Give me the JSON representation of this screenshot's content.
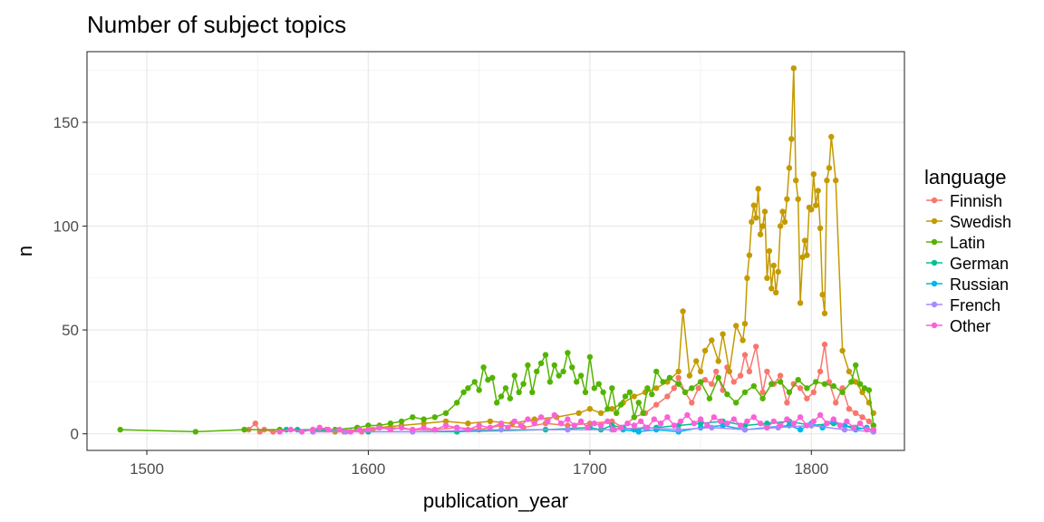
{
  "chart_data": {
    "type": "line",
    "title": "Number of subject topics",
    "xlabel": "publication_year",
    "ylabel": "n",
    "xlim": [
      1473,
      1842
    ],
    "ylim": [
      -8,
      184
    ],
    "x_ticks": [
      1500,
      1600,
      1700,
      1800
    ],
    "y_ticks": [
      0,
      50,
      100,
      150
    ],
    "grid": true,
    "legend": {
      "title": "language",
      "position": "right"
    },
    "series": [
      {
        "name": "Finnish",
        "color": "#F8766D",
        "x": [
          1544,
          1546,
          1549,
          1551,
          1553,
          1557,
          1575,
          1581,
          1589,
          1597,
          1602,
          1610,
          1620,
          1630,
          1640,
          1650,
          1660,
          1670,
          1680,
          1690,
          1700,
          1710,
          1715,
          1720,
          1725,
          1730,
          1735,
          1738,
          1740,
          1743,
          1746,
          1749,
          1752,
          1755,
          1757,
          1760,
          1762,
          1765,
          1768,
          1770,
          1772,
          1775,
          1778,
          1780,
          1783,
          1786,
          1789,
          1792,
          1795,
          1798,
          1801,
          1804,
          1806,
          1808,
          1811,
          1814,
          1817,
          1820,
          1823,
          1826,
          1828
        ],
        "y": [
          2,
          2,
          5,
          1,
          2,
          1,
          2,
          2,
          1,
          1,
          2,
          3,
          2,
          2,
          3,
          2,
          4,
          3,
          5,
          4,
          5,
          6,
          3,
          8,
          10,
          14,
          18,
          22,
          27,
          20,
          15,
          22,
          26,
          24,
          30,
          21,
          32,
          25,
          28,
          38,
          30,
          42,
          20,
          30,
          24,
          28,
          15,
          24,
          22,
          17,
          20,
          30,
          43,
          25,
          15,
          22,
          12,
          10,
          8,
          6,
          4
        ]
      },
      {
        "name": "Swedish",
        "color": "#C49A00",
        "x": [
          1575,
          1585,
          1595,
          1605,
          1615,
          1625,
          1635,
          1645,
          1655,
          1665,
          1675,
          1685,
          1695,
          1700,
          1705,
          1710,
          1715,
          1720,
          1725,
          1730,
          1735,
          1740,
          1742,
          1745,
          1748,
          1750,
          1752,
          1755,
          1758,
          1760,
          1763,
          1766,
          1769,
          1770,
          1771,
          1772,
          1773,
          1774,
          1775,
          1776,
          1777,
          1778,
          1779,
          1780,
          1781,
          1782,
          1783,
          1784,
          1785,
          1786,
          1787,
          1788,
          1789,
          1790,
          1791,
          1792,
          1793,
          1794,
          1795,
          1796,
          1797,
          1798,
          1799,
          1800,
          1801,
          1802,
          1803,
          1804,
          1805,
          1806,
          1807,
          1808,
          1809,
          1811,
          1814,
          1817,
          1820,
          1823,
          1826,
          1828
        ],
        "y": [
          1,
          1,
          2,
          3,
          4,
          5,
          6,
          5,
          6,
          5,
          7,
          8,
          10,
          12,
          10,
          12,
          15,
          18,
          20,
          22,
          25,
          30,
          59,
          28,
          35,
          30,
          40,
          45,
          35,
          48,
          30,
          52,
          45,
          53,
          75,
          86,
          102,
          110,
          104,
          118,
          96,
          100,
          107,
          75,
          88,
          70,
          81,
          68,
          78,
          100,
          107,
          102,
          113,
          128,
          142,
          176,
          122,
          113,
          63,
          85,
          93,
          86,
          109,
          108,
          125,
          110,
          117,
          99,
          67,
          58,
          122,
          128,
          143,
          122,
          40,
          30,
          25,
          20,
          15,
          10
        ]
      },
      {
        "name": "Latin",
        "color": "#53B400",
        "x": [
          1488,
          1522,
          1544,
          1560,
          1575,
          1585,
          1595,
          1600,
          1605,
          1610,
          1615,
          1620,
          1625,
          1630,
          1635,
          1640,
          1643,
          1645,
          1648,
          1650,
          1652,
          1654,
          1656,
          1658,
          1660,
          1662,
          1664,
          1666,
          1668,
          1670,
          1672,
          1674,
          1676,
          1678,
          1680,
          1682,
          1684,
          1686,
          1688,
          1690,
          1692,
          1694,
          1696,
          1698,
          1700,
          1702,
          1704,
          1706,
          1708,
          1710,
          1712,
          1714,
          1716,
          1718,
          1720,
          1722,
          1724,
          1726,
          1728,
          1730,
          1733,
          1736,
          1740,
          1743,
          1746,
          1750,
          1754,
          1758,
          1762,
          1766,
          1770,
          1774,
          1778,
          1782,
          1786,
          1790,
          1794,
          1798,
          1802,
          1806,
          1810,
          1814,
          1818,
          1820,
          1822,
          1824,
          1826,
          1828
        ],
        "y": [
          2,
          1,
          2,
          2,
          2,
          2,
          3,
          4,
          4,
          5,
          6,
          8,
          7,
          8,
          10,
          15,
          20,
          22,
          25,
          21,
          32,
          26,
          27,
          15,
          18,
          22,
          17,
          28,
          20,
          24,
          33,
          20,
          30,
          34,
          38,
          25,
          33,
          28,
          30,
          39,
          32,
          25,
          28,
          20,
          37,
          22,
          24,
          20,
          12,
          22,
          10,
          14,
          18,
          20,
          8,
          15,
          10,
          22,
          19,
          30,
          25,
          27,
          24,
          20,
          22,
          25,
          17,
          27,
          19,
          15,
          20,
          23,
          17,
          24,
          25,
          20,
          26,
          22,
          25,
          24,
          23,
          20,
          25,
          33,
          24,
          22,
          21,
          4
        ]
      },
      {
        "name": "German",
        "color": "#00C094",
        "x": [
          1563,
          1568,
          1600,
          1640,
          1680,
          1700,
          1705,
          1710,
          1715,
          1720,
          1730,
          1740,
          1750,
          1760,
          1770,
          1780,
          1790,
          1800,
          1810,
          1820,
          1828
        ],
        "y": [
          2,
          2,
          1,
          1,
          2,
          3,
          2,
          4,
          3,
          2,
          3,
          4,
          5,
          6,
          4,
          5,
          6,
          4,
          5,
          3,
          2
        ]
      },
      {
        "name": "Russian",
        "color": "#00B6EB",
        "x": [
          1715,
          1722,
          1730,
          1740,
          1750,
          1760,
          1770,
          1780,
          1790,
          1795,
          1800,
          1805,
          1810,
          1815,
          1820,
          1825,
          1828
        ],
        "y": [
          2,
          1,
          2,
          1,
          3,
          4,
          2,
          3,
          4,
          2,
          5,
          3,
          6,
          4,
          2,
          3,
          1
        ]
      },
      {
        "name": "French",
        "color": "#A58AFF",
        "x": [
          1575,
          1590,
          1620,
          1660,
          1690,
          1710,
          1725,
          1740,
          1755,
          1770,
          1785,
          1800,
          1815,
          1828
        ],
        "y": [
          1,
          1,
          1,
          2,
          2,
          2,
          3,
          2,
          3,
          2,
          3,
          4,
          2,
          1
        ]
      },
      {
        "name": "Other",
        "color": "#FB61D7",
        "x": [
          1560,
          1565,
          1570,
          1575,
          1578,
          1582,
          1587,
          1592,
          1596,
          1600,
          1605,
          1610,
          1615,
          1620,
          1625,
          1630,
          1635,
          1640,
          1645,
          1650,
          1655,
          1660,
          1663,
          1666,
          1669,
          1672,
          1675,
          1678,
          1681,
          1684,
          1687,
          1690,
          1693,
          1696,
          1699,
          1702,
          1705,
          1708,
          1711,
          1714,
          1717,
          1720,
          1723,
          1726,
          1729,
          1732,
          1735,
          1738,
          1741,
          1744,
          1747,
          1750,
          1753,
          1756,
          1759,
          1762,
          1765,
          1768,
          1771,
          1774,
          1777,
          1780,
          1783,
          1786,
          1789,
          1792,
          1795,
          1798,
          1801,
          1804,
          1807,
          1810,
          1813,
          1816,
          1819,
          1822,
          1825,
          1828
        ],
        "y": [
          1,
          2,
          1,
          2,
          3,
          2,
          2,
          1,
          2,
          2,
          3,
          2,
          3,
          2,
          3,
          2,
          4,
          3,
          2,
          4,
          3,
          5,
          3,
          6,
          4,
          7,
          5,
          8,
          6,
          9,
          5,
          7,
          4,
          6,
          3,
          5,
          4,
          6,
          2,
          3,
          5,
          4,
          6,
          3,
          7,
          5,
          8,
          4,
          6,
          9,
          5,
          7,
          4,
          8,
          6,
          5,
          7,
          4,
          6,
          8,
          5,
          3,
          6,
          4,
          7,
          5,
          8,
          4,
          6,
          9,
          5,
          7,
          4,
          6,
          3,
          5,
          2,
          2
        ]
      }
    ]
  }
}
